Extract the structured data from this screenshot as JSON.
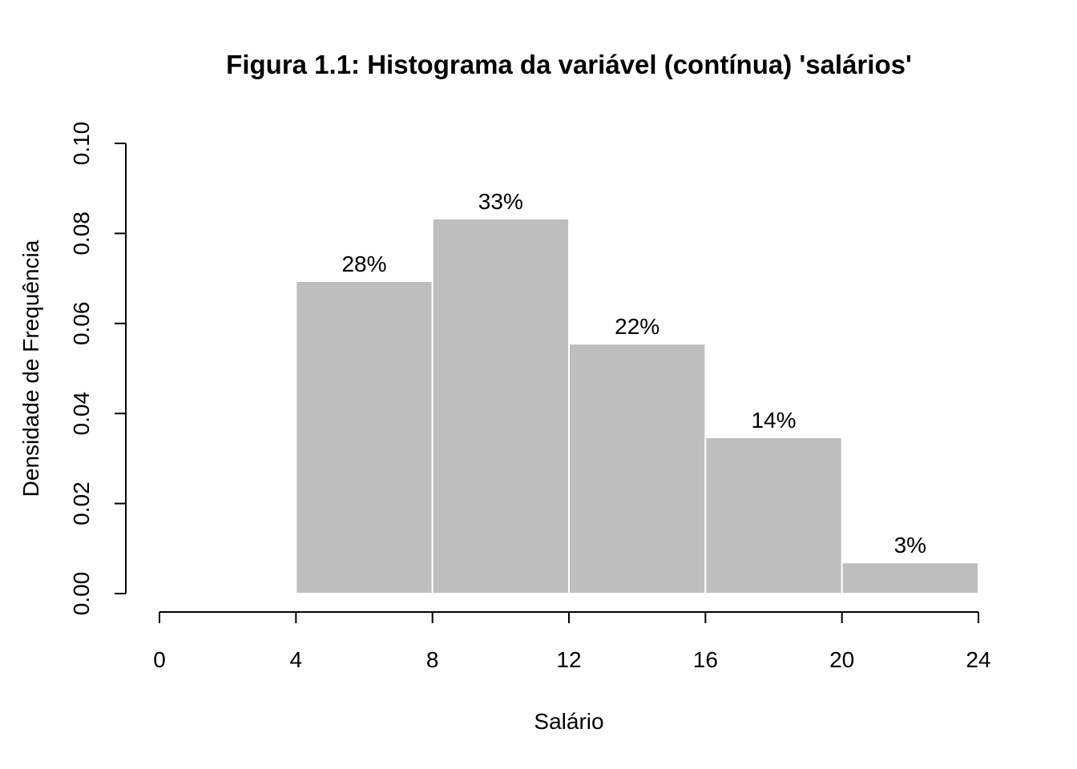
{
  "chart_data": {
    "type": "bar",
    "title": "Figura 1.1: Histograma da variável (contínua) 'salários'",
    "xlabel": "Salário",
    "ylabel": "Densidade de Frequência",
    "xlim": [
      0,
      24
    ],
    "ylim": [
      0,
      0.1
    ],
    "x_ticks": [
      "0",
      "4",
      "8",
      "12",
      "16",
      "20",
      "24"
    ],
    "y_ticks": [
      "0.00",
      "0.02",
      "0.04",
      "0.06",
      "0.08",
      "0.10"
    ],
    "bins": [
      {
        "start": 4,
        "end": 8,
        "density": 0.0694,
        "label": "28%"
      },
      {
        "start": 8,
        "end": 12,
        "density": 0.0833,
        "label": "33%"
      },
      {
        "start": 12,
        "end": 16,
        "density": 0.0555,
        "label": "22%"
      },
      {
        "start": 16,
        "end": 20,
        "density": 0.0347,
        "label": "14%"
      },
      {
        "start": 20,
        "end": 24,
        "density": 0.0069,
        "label": "3%"
      }
    ],
    "bar_color": "#bebebe",
    "bar_border_color": "#ffffff",
    "grid": false,
    "legend": "none"
  }
}
